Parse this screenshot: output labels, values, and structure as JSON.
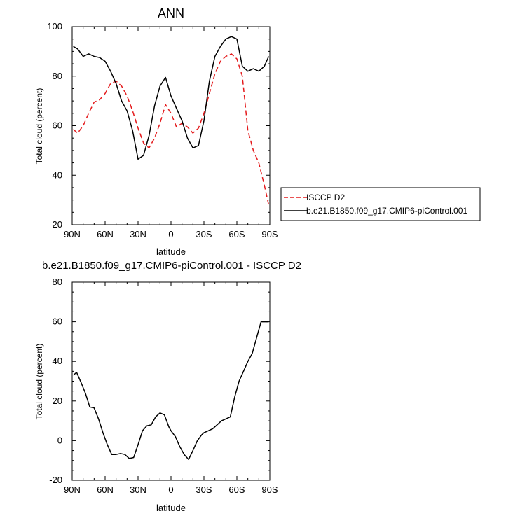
{
  "chart_data": [
    {
      "type": "line",
      "title": "ANN",
      "xlabel": "latitude",
      "ylabel": "Total cloud (percent)",
      "xlim": [
        90,
        -90
      ],
      "ylim": [
        20,
        100
      ],
      "x_ticks": [
        90,
        60,
        30,
        0,
        -30,
        -60,
        -90
      ],
      "x_tick_labels": [
        "90N",
        "60N",
        "30N",
        "0",
        "30S",
        "60S",
        "90S"
      ],
      "y_ticks": [
        20,
        40,
        60,
        80,
        100
      ],
      "y_tick_labels": [
        "20",
        "40",
        "60",
        "80",
        "100"
      ],
      "legend_position": "right",
      "series": [
        {
          "name": "ISCCP D2",
          "color": "#e41a1c",
          "dash": "dashed",
          "x": [
            89,
            85,
            80,
            75,
            70,
            65,
            60,
            55,
            50,
            45,
            40,
            35,
            30,
            25,
            20,
            15,
            10,
            5,
            0,
            -5,
            -10,
            -15,
            -20,
            -25,
            -30,
            -35,
            -40,
            -45,
            -50,
            -55,
            -60,
            -65,
            -70,
            -75,
            -80,
            -85,
            -89
          ],
          "y": [
            58.5,
            57,
            60,
            65,
            69.5,
            70.5,
            73,
            77,
            78,
            76,
            72,
            66,
            59,
            53,
            51,
            55,
            61,
            68.5,
            65,
            59.5,
            61,
            59.5,
            57,
            59,
            65,
            73,
            81,
            86,
            88,
            89,
            87,
            80,
            58,
            50,
            45,
            36,
            28
          ]
        },
        {
          "name": "b.e21.B1850.f09_g17.CMIP6-piControl.001",
          "color": "#000000",
          "dash": "solid",
          "x": [
            89,
            85,
            80,
            75,
            70,
            65,
            60,
            55,
            50,
            45,
            40,
            35,
            30,
            25,
            20,
            15,
            10,
            5,
            0,
            -5,
            -10,
            -15,
            -20,
            -25,
            -30,
            -35,
            -40,
            -45,
            -50,
            -55,
            -60,
            -65,
            -70,
            -75,
            -80,
            -85,
            -89
          ],
          "y": [
            92,
            91,
            88,
            89,
            88,
            87.5,
            86,
            82,
            77,
            70,
            66,
            58,
            46.5,
            48,
            56,
            68,
            76,
            79.5,
            72,
            67,
            62,
            55,
            51,
            52,
            62,
            78,
            88,
            92,
            95,
            96,
            95,
            84,
            82,
            83,
            82,
            84,
            88
          ]
        }
      ]
    },
    {
      "type": "line",
      "title": "b.e21.B1850.f09_g17.CMIP6-piControl.001 - ISCCP D2",
      "xlabel": "latitude",
      "ylabel": "Total cloud (percent)",
      "xlim": [
        90,
        -90
      ],
      "ylim": [
        -20,
        80
      ],
      "x_ticks": [
        90,
        60,
        30,
        0,
        -30,
        -60,
        -90
      ],
      "x_tick_labels": [
        "90N",
        "60N",
        "30N",
        "0",
        "30S",
        "60S",
        "90S"
      ],
      "y_ticks": [
        -20,
        0,
        20,
        40,
        60,
        80
      ],
      "y_tick_labels": [
        "-20",
        "0",
        "20",
        "40",
        "60",
        "80"
      ],
      "series": [
        {
          "color": "#000000",
          "dash": "solid",
          "x": [
            89,
            86,
            82,
            78,
            74,
            70,
            66,
            62,
            58,
            54,
            50,
            46,
            42,
            38,
            34,
            30,
            26,
            22,
            18,
            14,
            10,
            6,
            2,
            0,
            -4,
            -8,
            -12,
            -16,
            -20,
            -24,
            -28,
            -30,
            -34,
            -38,
            -42,
            -46,
            -50,
            -54,
            -58,
            -62,
            -66,
            -70,
            -74,
            -78,
            -82,
            -86,
            -89
          ],
          "y": [
            33,
            34.5,
            29.5,
            24,
            17,
            16.5,
            11,
            4,
            -2,
            -7,
            -7,
            -6.5,
            -7,
            -9,
            -8.5,
            -2,
            5,
            7.5,
            8,
            12,
            14,
            13,
            7,
            5,
            2,
            -3,
            -7,
            -9.5,
            -5,
            0,
            3,
            4,
            5,
            6,
            8,
            10,
            11,
            12,
            22,
            30,
            35,
            40,
            44,
            52,
            60,
            60,
            60
          ]
        }
      ]
    }
  ]
}
